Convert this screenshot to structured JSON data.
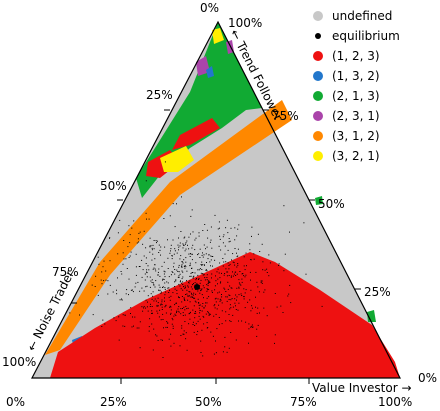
{
  "chart_data": {
    "type": "ternary-scatter",
    "axes": {
      "top": "← Trend Follower",
      "left": "← Noise Trader",
      "bottom": "Value Investor →"
    },
    "ticks": {
      "top_vertex": "0%",
      "top_vertex_100": "100%",
      "trend": [
        "25%",
        "50%",
        "75%",
        "100%"
      ],
      "trend_right": [
        "75%",
        "50%",
        "25%",
        "0%"
      ],
      "noise_left": [
        "25%",
        "50%",
        "75%",
        "100%"
      ],
      "bottom": [
        "0%",
        "25%",
        "50%",
        "75%",
        "100%"
      ]
    },
    "legend": [
      {
        "label": "undefined",
        "color": "#c8c8c8"
      },
      {
        "label": "equilibrium",
        "color": "#000000"
      },
      {
        "label": "(1, 2, 3)",
        "color": "#ee1111"
      },
      {
        "label": "(1, 3, 2)",
        "color": "#2277cc"
      },
      {
        "label": "(2, 1, 3)",
        "color": "#11aa33"
      },
      {
        "label": "(2, 3, 1)",
        "color": "#aa44aa"
      },
      {
        "label": "(3, 1, 2)",
        "color": "#ff8800"
      },
      {
        "label": "(3, 2, 1)",
        "color": "#ffee00"
      }
    ],
    "equilibrium_point": {
      "value_investor": 0.45,
      "trend_follower": 0.22,
      "noise_trader": 0.33
    },
    "scatter_cluster": {
      "center_value": 0.42,
      "center_trend": 0.25,
      "spread": 0.1
    }
  }
}
